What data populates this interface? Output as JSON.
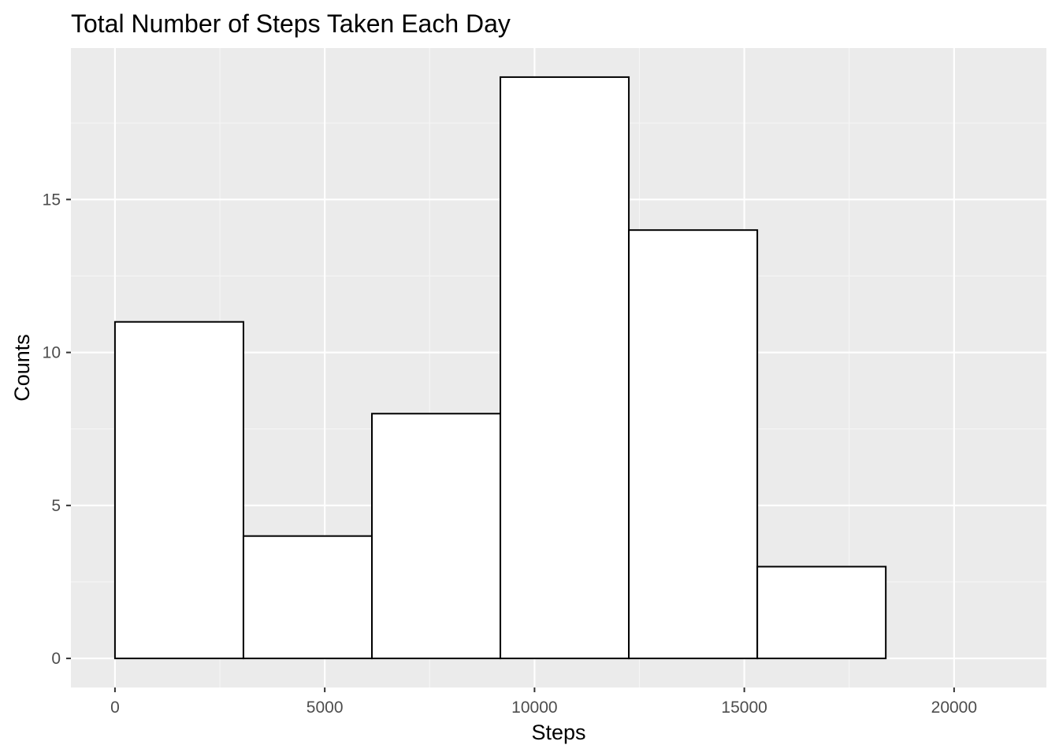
{
  "chart_data": {
    "type": "bar",
    "title": "Total Number of Steps Taken Each Day",
    "xlabel": "Steps",
    "ylabel": "Counts",
    "bins": [
      {
        "start": 0,
        "end": 3062,
        "count": 11
      },
      {
        "start": 3062,
        "end": 6124,
        "count": 4
      },
      {
        "start": 6124,
        "end": 9186,
        "count": 8
      },
      {
        "start": 9186,
        "end": 12248,
        "count": 19
      },
      {
        "start": 12248,
        "end": 15310,
        "count": 14
      },
      {
        "start": 15310,
        "end": 18372,
        "count": 3
      }
    ],
    "xlim": [
      -1050,
      22200
    ],
    "ylim": [
      -0.95,
      19.95
    ],
    "x_ticks": [
      0,
      5000,
      10000,
      15000,
      20000
    ],
    "x_tick_labels": [
      "0",
      "5000",
      "10000",
      "15000",
      "20000"
    ],
    "y_ticks": [
      0,
      5,
      10,
      15
    ],
    "y_tick_labels": [
      "0",
      "5",
      "10",
      "15"
    ],
    "grid": true,
    "colors": {
      "panel_background": "#ebebeb",
      "grid_major": "#ffffff",
      "grid_minor": "#f5f5f5",
      "bar_fill": "#ffffff",
      "bar_outline": "#000000",
      "tick_mark": "#333333"
    }
  }
}
